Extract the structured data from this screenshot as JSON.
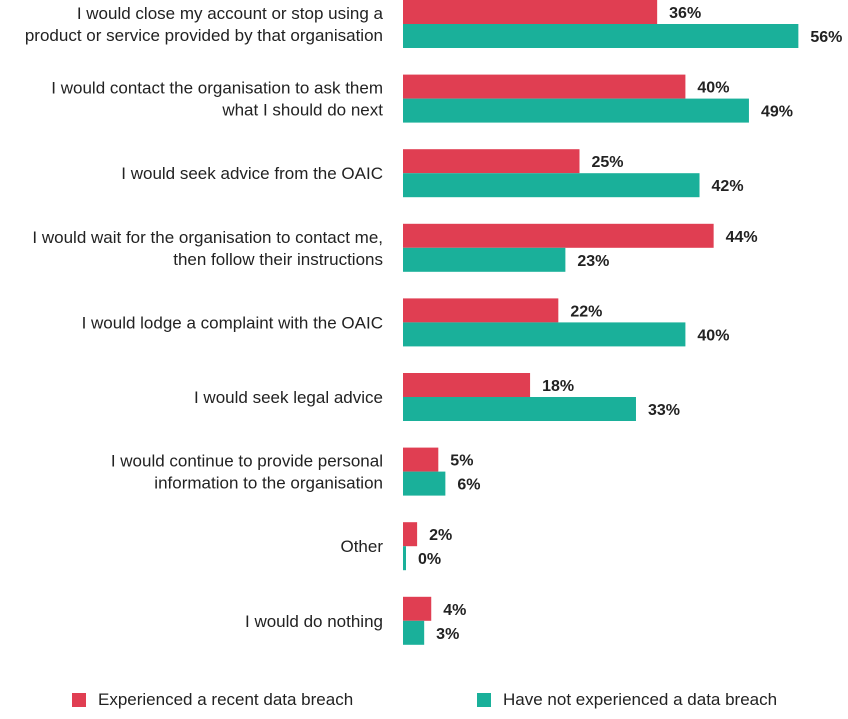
{
  "chart_data": {
    "type": "bar",
    "orientation": "horizontal",
    "categories": [
      [
        "I would close my account or stop using a",
        "product or service provided by that organisation"
      ],
      [
        "I would contact the organisation to ask them",
        "what I should do next"
      ],
      [
        "I would seek advice from the OAIC"
      ],
      [
        "I would wait for the organisation to contact me,",
        "then follow their instructions"
      ],
      [
        "I would lodge a complaint with the OAIC"
      ],
      [
        "I would seek legal advice"
      ],
      [
        "I would continue to provide personal",
        "information to the organisation"
      ],
      [
        "Other"
      ],
      [
        "I would do nothing"
      ]
    ],
    "series": [
      {
        "name": "Experienced a recent data breach",
        "color": "#e03e52",
        "values": [
          36,
          40,
          25,
          44,
          22,
          18,
          5,
          2,
          4
        ],
        "labels": [
          "36%",
          "40%",
          "25%",
          "44%",
          "22%",
          "18%",
          "5%",
          "2%",
          "4%"
        ]
      },
      {
        "name": "Have not experienced  a data breach",
        "color": "#1ab09a",
        "values": [
          56,
          49,
          42,
          23,
          40,
          33,
          6,
          0,
          3
        ],
        "labels": [
          "56%",
          "49%",
          "42%",
          "23%",
          "40%",
          "33%",
          "6%",
          "0%",
          "3%"
        ]
      }
    ],
    "xlim": [
      0,
      56
    ],
    "grid": false,
    "legend_position": "bottom",
    "title": "",
    "xlabel": "",
    "ylabel": ""
  }
}
